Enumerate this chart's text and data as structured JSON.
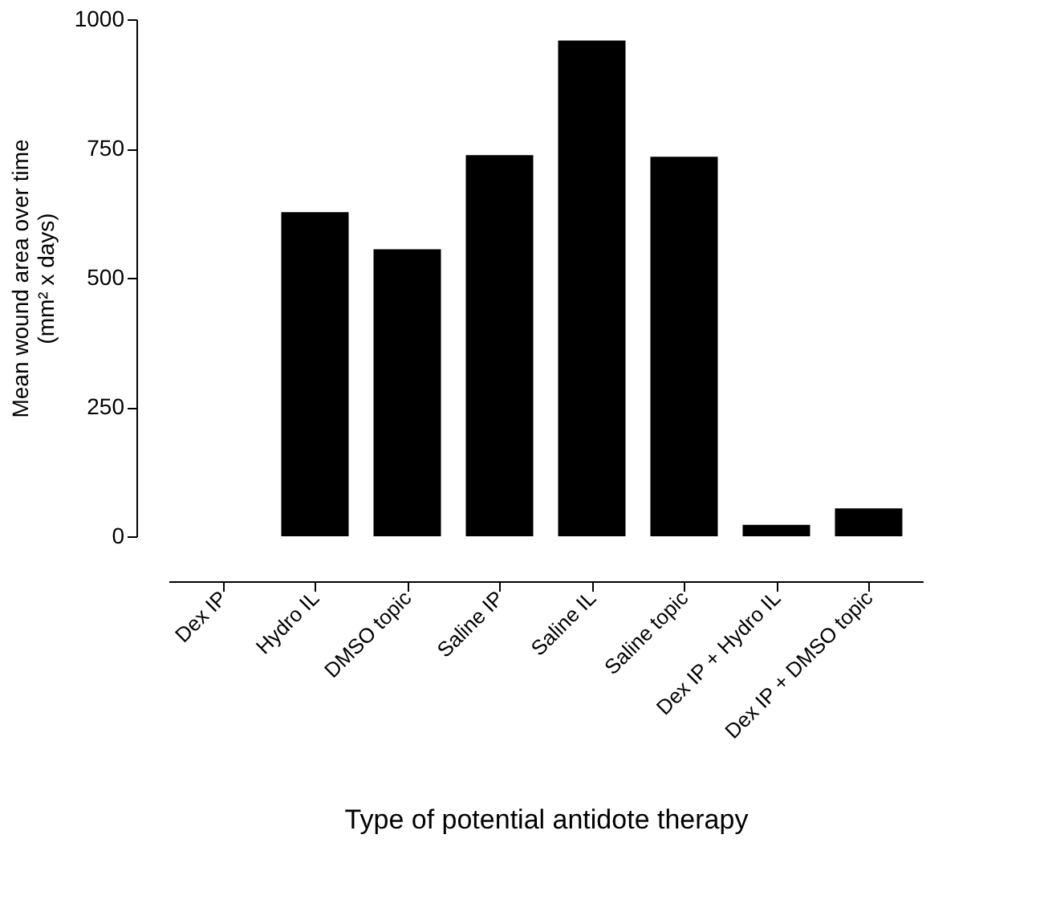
{
  "chart_data": {
    "type": "bar",
    "xlabel": "Type of potential antidote therapy",
    "ylabel": "Mean wound area over time\n(mm² x days)",
    "categories": [
      "Dex IP",
      "Hydro IL",
      "DMSO topic",
      "Saline IP",
      "Saline IL",
      "Saline topic",
      "Dex IP + Hydro IL",
      "Dex IP + DMSO topic"
    ],
    "values": [
      0,
      627,
      555,
      737,
      959,
      734,
      22,
      54
    ],
    "color": "#000000",
    "ylim": [
      0,
      1000
    ],
    "yticks": [
      0,
      250,
      500,
      750,
      1000
    ],
    "grid": false
  }
}
